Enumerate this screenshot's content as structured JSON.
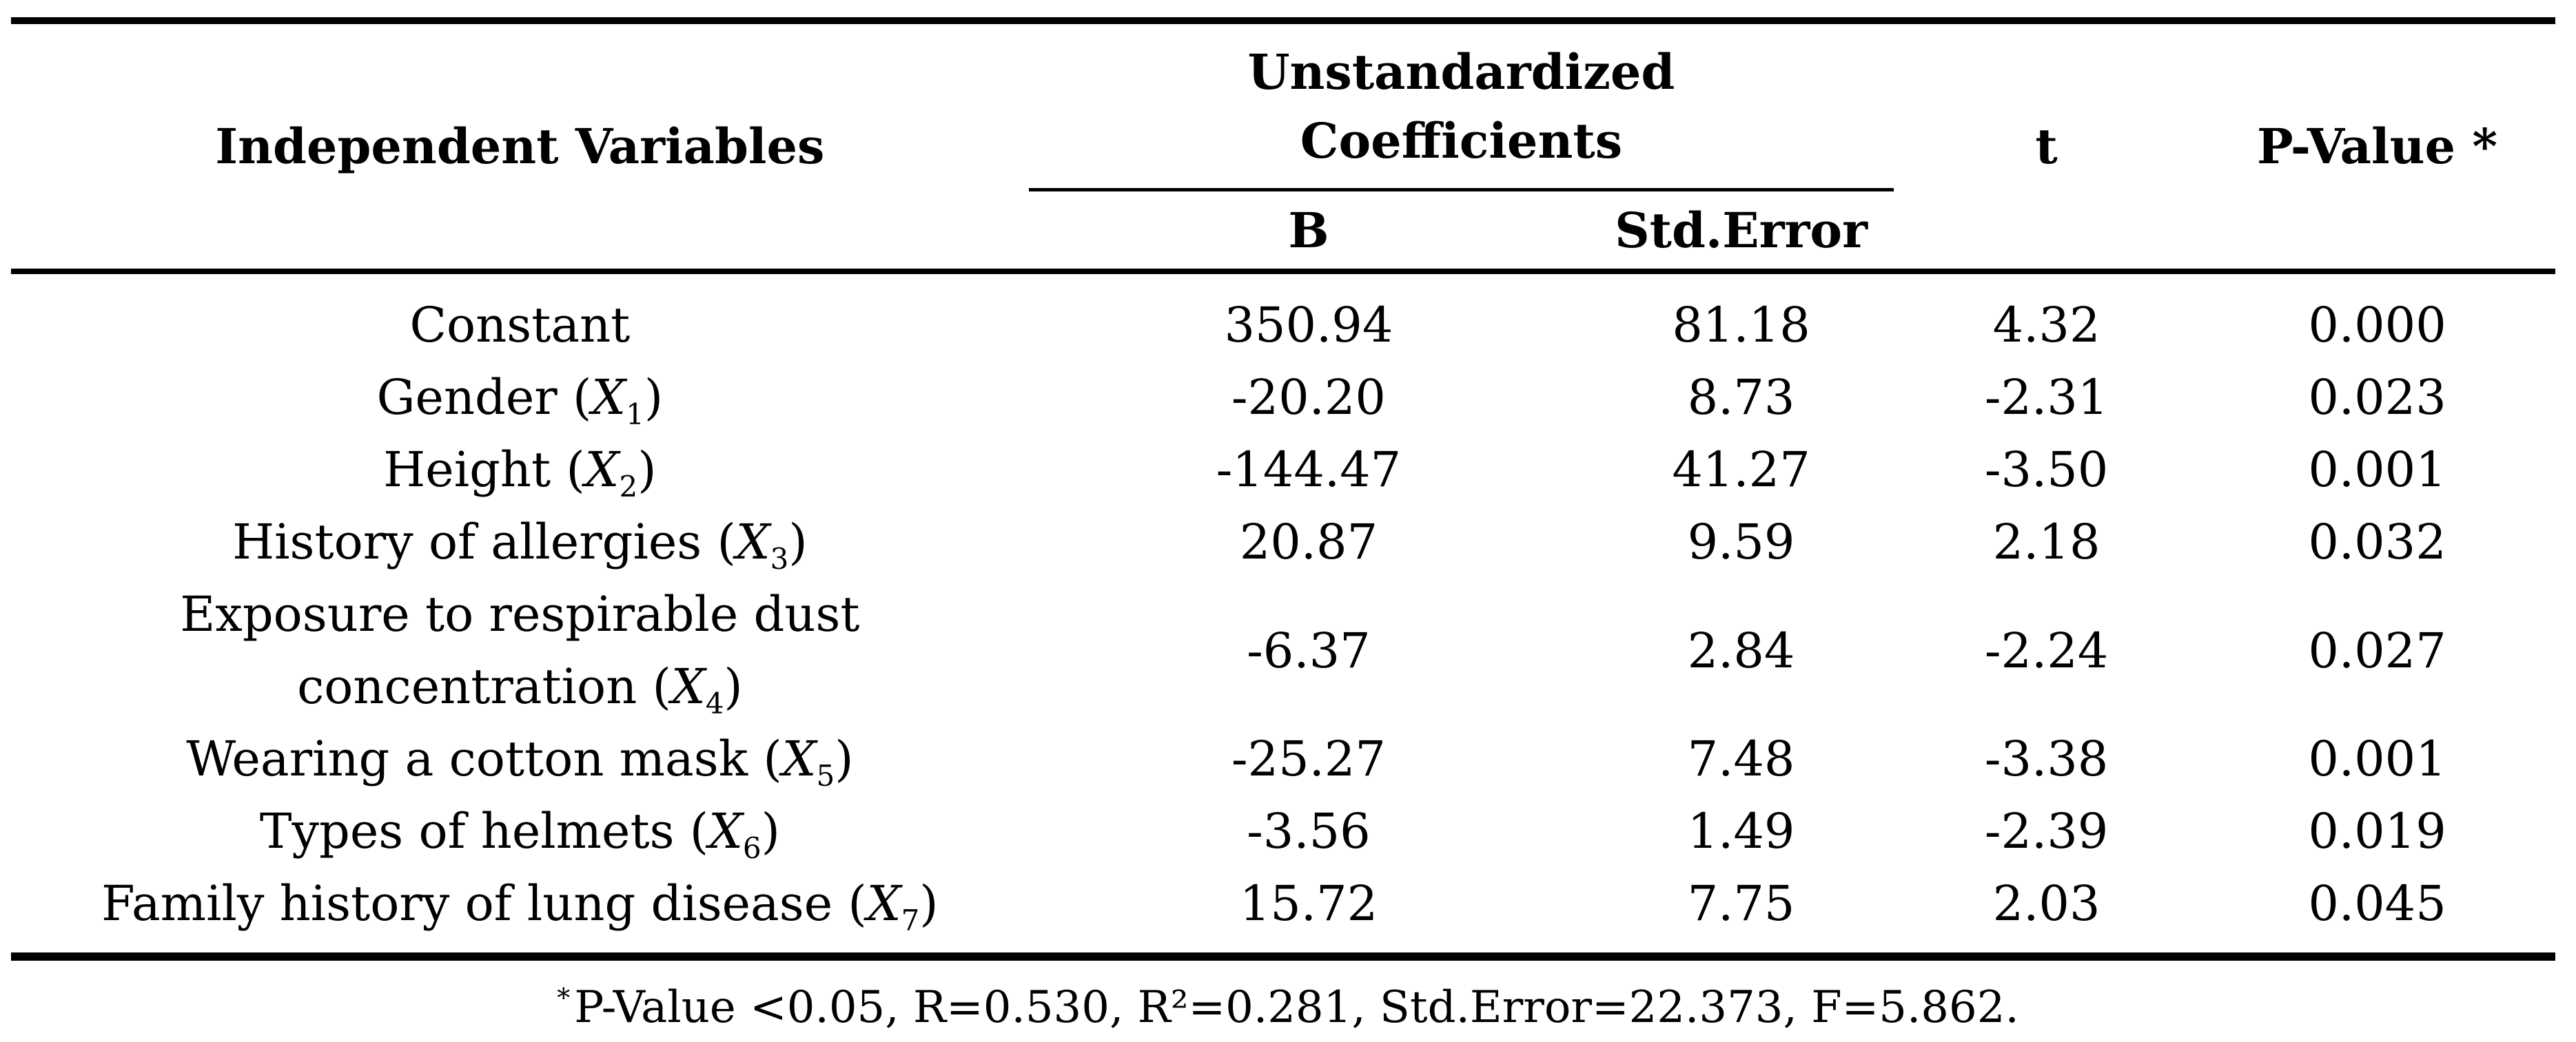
{
  "page": {
    "background_color": "#ffffff",
    "text_color": "#000000"
  },
  "table": {
    "header": {
      "independent_variables": "Independent Variables",
      "group_line1": "Unstandardized",
      "group_line2": "Coefficients",
      "col_b": "B",
      "col_std_error": "Std.Error",
      "col_t": "t",
      "col_p_value": "P-Value *"
    },
    "rows": [
      {
        "label_pre": "Constant",
        "symbol": "",
        "sub": "",
        "label_post": "",
        "b": "350.94",
        "std_error": "81.18",
        "t": "4.32",
        "p_value": "0.000"
      },
      {
        "label_pre": "Gender (",
        "symbol": "X",
        "sub": "1",
        "label_post": ")",
        "b": "-20.20",
        "std_error": "8.73",
        "t": "-2.31",
        "p_value": "0.023"
      },
      {
        "label_pre": "Height (",
        "symbol": "X",
        "sub": "2",
        "label_post": ")",
        "b": "-144.47",
        "std_error": "41.27",
        "t": "-3.50",
        "p_value": "0.001"
      },
      {
        "label_pre": "History of allergies (",
        "symbol": "X",
        "sub": "3",
        "label_post": ")",
        "b": "20.87",
        "std_error": "9.59",
        "t": "2.18",
        "p_value": "0.032"
      },
      {
        "label_pre": "Exposure to respirable dust\nconcentration (",
        "symbol": "X",
        "sub": "4",
        "label_post": ")",
        "b": "-6.37",
        "std_error": "2.84",
        "t": "-2.24",
        "p_value": "0.027"
      },
      {
        "label_pre": "Wearing a cotton mask (",
        "symbol": "X",
        "sub": "5",
        "label_post": ")",
        "b": "-25.27",
        "std_error": "7.48",
        "t": "-3.38",
        "p_value": "0.001"
      },
      {
        "label_pre": "Types of helmets (",
        "symbol": "X",
        "sub": "6",
        "label_post": ")",
        "b": "-3.56",
        "std_error": "1.49",
        "t": "-2.39",
        "p_value": "0.019"
      },
      {
        "label_pre": "Family history of lung disease (",
        "symbol": "X",
        "sub": "7",
        "label_post": ")",
        "b": "15.72",
        "std_error": "7.75",
        "t": "2.03",
        "p_value": "0.045"
      }
    ],
    "footnote": {
      "star": "*",
      "text": "P-Value <0.05, R=0.530, R²=0.281, Std.Error=22.373, F=5.862."
    }
  }
}
